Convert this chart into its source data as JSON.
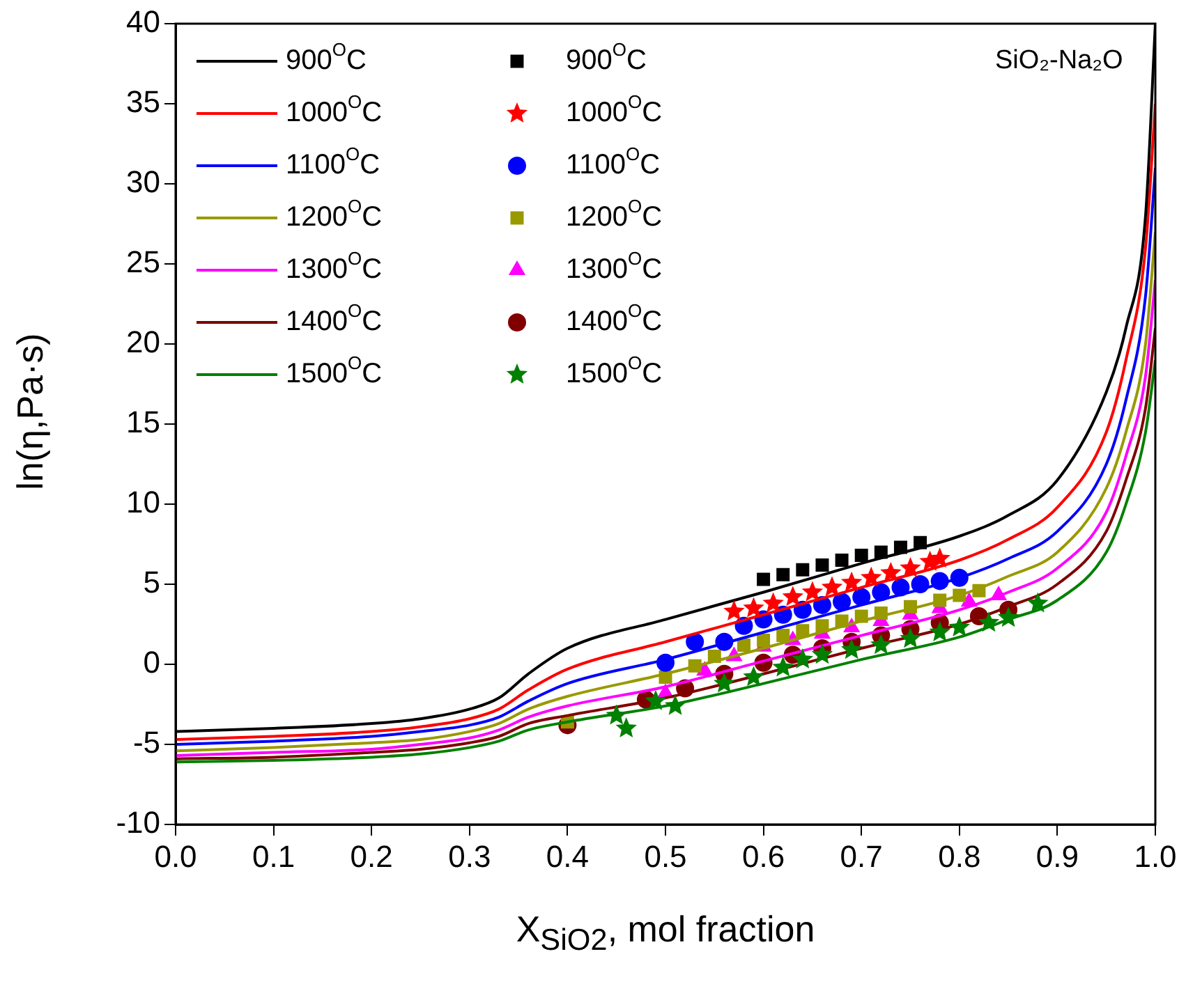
{
  "chart_data": {
    "type": "line",
    "title": "SiO₂-Na₂O",
    "xlabel": "X$_{SiO2}$, mol fraction",
    "ylabel": "ln(η,Pa·s)",
    "xlim": [
      0,
      1
    ],
    "ylim": [
      -10,
      40
    ],
    "xticks": [
      {
        "value": 0,
        "label": "0.0"
      },
      {
        "value": 0.1,
        "label": "0.1"
      },
      {
        "value": 0.2,
        "label": "0.2"
      },
      {
        "value": 0.3,
        "label": "0.3"
      },
      {
        "value": 0.4,
        "label": "0.4"
      },
      {
        "value": 0.5,
        "label": "0.5"
      },
      {
        "value": 0.6,
        "label": "0.6"
      },
      {
        "value": 0.7,
        "label": "0.7"
      },
      {
        "value": 0.8,
        "label": "0.8"
      },
      {
        "value": 0.9,
        "label": "0.9"
      },
      {
        "value": 1,
        "label": "1.0"
      }
    ],
    "yticks": [
      -10,
      -5,
      0,
      5,
      10,
      15,
      20,
      25,
      30,
      35,
      40
    ],
    "grid": false,
    "legend": "top left",
    "series": [
      {
        "name": "900$^{O}$C",
        "type": "line",
        "marker": "none",
        "color": "#000000",
        "x": [
          0,
          0.1,
          0.2,
          0.25,
          0.3,
          0.33,
          0.36,
          0.4,
          0.5,
          0.6,
          0.7,
          0.8,
          0.85,
          0.9,
          0.95,
          0.97,
          0.99,
          1
        ],
        "values": [
          -4.2,
          -4.0,
          -3.7,
          -3.4,
          -2.8,
          -2.1,
          -0.6,
          1.0,
          2.8,
          4.5,
          6.3,
          8.0,
          9.3,
          11.5,
          17,
          21,
          28,
          40
        ]
      },
      {
        "name": "1000$^{O}$C",
        "type": "line",
        "marker": "none",
        "color": "#ff0000",
        "x": [
          0,
          0.1,
          0.2,
          0.25,
          0.3,
          0.33,
          0.36,
          0.4,
          0.5,
          0.6,
          0.7,
          0.8,
          0.85,
          0.9,
          0.95,
          0.97,
          0.99,
          1
        ],
        "values": [
          -4.7,
          -4.5,
          -4.2,
          -3.9,
          -3.4,
          -2.8,
          -1.6,
          -0.3,
          1.4,
          3.1,
          4.8,
          6.5,
          7.8,
          9.8,
          14.5,
          19,
          26,
          35
        ]
      },
      {
        "name": "1100$^{O}$C",
        "type": "line",
        "marker": "none",
        "color": "#0000ff",
        "x": [
          0,
          0.1,
          0.2,
          0.25,
          0.3,
          0.33,
          0.36,
          0.4,
          0.5,
          0.6,
          0.7,
          0.8,
          0.85,
          0.9,
          0.95,
          0.97,
          0.99,
          1
        ],
        "values": [
          -5.0,
          -4.8,
          -4.5,
          -4.2,
          -3.8,
          -3.3,
          -2.3,
          -1.2,
          0.3,
          2.0,
          3.7,
          5.4,
          6.6,
          8.3,
          12.5,
          16.5,
          23,
          31
        ]
      },
      {
        "name": "1200$^{O}$C",
        "type": "line",
        "marker": "none",
        "color": "#999900",
        "x": [
          0,
          0.1,
          0.2,
          0.25,
          0.3,
          0.33,
          0.36,
          0.4,
          0.5,
          0.6,
          0.7,
          0.8,
          0.85,
          0.9,
          0.95,
          0.97,
          0.99,
          1
        ],
        "values": [
          -5.4,
          -5.2,
          -4.9,
          -4.7,
          -4.2,
          -3.7,
          -2.8,
          -2.0,
          -0.6,
          1.0,
          2.7,
          4.3,
          5.5,
          7.0,
          11,
          14.5,
          20,
          27
        ]
      },
      {
        "name": "1300$^{O}$C",
        "type": "line",
        "marker": "none",
        "color": "#ff00ff",
        "x": [
          0,
          0.1,
          0.2,
          0.25,
          0.3,
          0.33,
          0.36,
          0.4,
          0.5,
          0.6,
          0.7,
          0.8,
          0.85,
          0.9,
          0.95,
          0.97,
          0.99,
          1
        ],
        "values": [
          -5.7,
          -5.5,
          -5.3,
          -5.0,
          -4.6,
          -4.1,
          -3.3,
          -2.6,
          -1.4,
          0.2,
          1.8,
          3.4,
          4.5,
          6.0,
          9.5,
          13,
          18,
          24
        ]
      },
      {
        "name": "1400$^{O}$C",
        "type": "line",
        "marker": "none",
        "color": "#800000",
        "x": [
          0,
          0.1,
          0.2,
          0.25,
          0.3,
          0.33,
          0.36,
          0.4,
          0.5,
          0.6,
          0.7,
          0.8,
          0.85,
          0.9,
          0.95,
          0.97,
          0.99,
          1
        ],
        "values": [
          -5.9,
          -5.8,
          -5.5,
          -5.3,
          -4.9,
          -4.5,
          -3.7,
          -3.2,
          -2.1,
          -0.6,
          1.0,
          2.5,
          3.6,
          5.0,
          8.3,
          11.5,
          16,
          21
        ]
      },
      {
        "name": "1500$^{O}$C",
        "type": "line",
        "marker": "none",
        "color": "#008000",
        "x": [
          0,
          0.1,
          0.2,
          0.25,
          0.3,
          0.33,
          0.36,
          0.4,
          0.5,
          0.6,
          0.7,
          0.8,
          0.85,
          0.9,
          0.95,
          0.97,
          0.99,
          1
        ],
        "values": [
          -6.1,
          -6.0,
          -5.8,
          -5.6,
          -5.2,
          -4.8,
          -4.1,
          -3.6,
          -2.6,
          -1.2,
          0.3,
          1.7,
          2.8,
          4.0,
          7.0,
          10,
          14.5,
          19
        ]
      },
      {
        "name": "900$^{O}$C",
        "type": "scatter",
        "marker": "square",
        "color": "#000000",
        "x": [
          0.6,
          0.62,
          0.64,
          0.66,
          0.68,
          0.7,
          0.72,
          0.74,
          0.76
        ],
        "values": [
          5.3,
          5.6,
          5.9,
          6.2,
          6.5,
          6.8,
          7.0,
          7.3,
          7.6
        ]
      },
      {
        "name": "1000$^{O}$C",
        "type": "scatter",
        "marker": "star",
        "color": "#ff0000",
        "x": [
          0.57,
          0.59,
          0.61,
          0.63,
          0.65,
          0.67,
          0.69,
          0.71,
          0.73,
          0.75,
          0.77,
          0.78
        ],
        "values": [
          3.3,
          3.5,
          3.8,
          4.2,
          4.5,
          4.8,
          5.1,
          5.4,
          5.7,
          6.0,
          6.4,
          6.6
        ]
      },
      {
        "name": "1100$^{O}$C",
        "type": "scatter",
        "marker": "circle",
        "color": "#0000ff",
        "x": [
          0.5,
          0.53,
          0.56,
          0.58,
          0.6,
          0.62,
          0.64,
          0.66,
          0.68,
          0.7,
          0.72,
          0.74,
          0.76,
          0.78,
          0.8
        ],
        "values": [
          0.1,
          1.4,
          1.4,
          2.4,
          2.8,
          3.1,
          3.4,
          3.7,
          3.9,
          4.2,
          4.5,
          4.8,
          5.0,
          5.2,
          5.4
        ]
      },
      {
        "name": "1200$^{O}$C",
        "type": "scatter",
        "marker": "square",
        "color": "#999900",
        "x": [
          0.4,
          0.5,
          0.53,
          0.55,
          0.58,
          0.6,
          0.62,
          0.64,
          0.66,
          0.68,
          0.7,
          0.72,
          0.75,
          0.78,
          0.8,
          0.82
        ],
        "values": [
          -3.6,
          -0.8,
          -0.1,
          0.5,
          1.2,
          1.5,
          1.8,
          2.1,
          2.4,
          2.7,
          3.0,
          3.2,
          3.6,
          4.0,
          4.3,
          4.6
        ]
      },
      {
        "name": "1300$^{O}$C",
        "type": "scatter",
        "marker": "triangle",
        "color": "#ff00ff",
        "x": [
          0.5,
          0.54,
          0.57,
          0.6,
          0.63,
          0.66,
          0.69,
          0.72,
          0.75,
          0.78,
          0.81,
          0.84
        ],
        "values": [
          -1.8,
          -0.4,
          0.5,
          1.1,
          1.5,
          1.9,
          2.3,
          2.7,
          3.1,
          3.5,
          3.9,
          4.3
        ]
      },
      {
        "name": "1400$^{O}$C",
        "type": "scatter",
        "marker": "circle",
        "color": "#800000",
        "x": [
          0.4,
          0.48,
          0.52,
          0.56,
          0.6,
          0.63,
          0.66,
          0.69,
          0.72,
          0.75,
          0.78,
          0.82,
          0.85
        ],
        "values": [
          -3.8,
          -2.2,
          -1.5,
          -0.6,
          0.1,
          0.6,
          1.0,
          1.4,
          1.8,
          2.2,
          2.6,
          3.0,
          3.4
        ]
      },
      {
        "name": "1500$^{O}$C",
        "type": "scatter",
        "marker": "star",
        "color": "#008000",
        "x": [
          0.45,
          0.46,
          0.49,
          0.51,
          0.56,
          0.59,
          0.62,
          0.64,
          0.66,
          0.69,
          0.72,
          0.75,
          0.78,
          0.8,
          0.83,
          0.85,
          0.88
        ],
        "values": [
          -3.2,
          -4.0,
          -2.3,
          -2.6,
          -1.2,
          -0.8,
          -0.2,
          0.3,
          0.6,
          0.9,
          1.2,
          1.6,
          2.0,
          2.3,
          2.6,
          2.9,
          3.8
        ]
      }
    ]
  }
}
